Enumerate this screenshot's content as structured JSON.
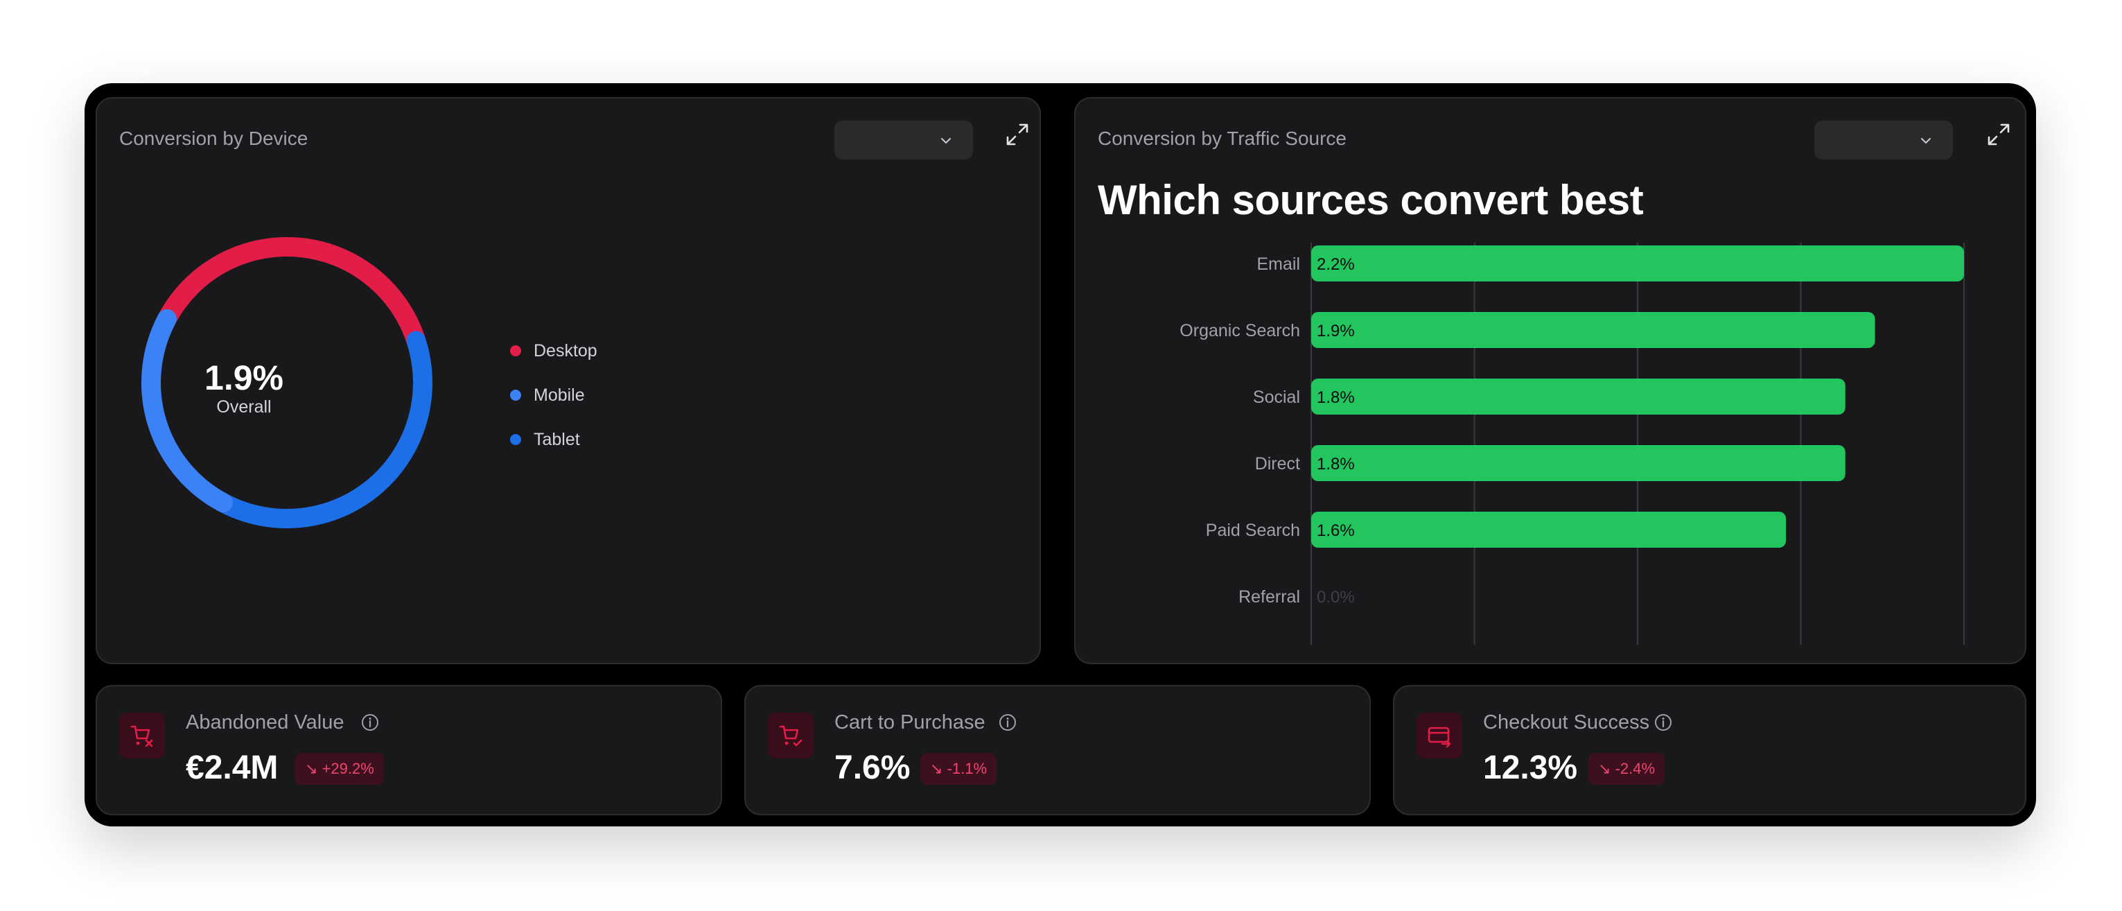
{
  "device_card": {
    "title": "Conversion by Device",
    "center_value": "1.9%",
    "center_label": "Overall",
    "legend": [
      {
        "label": "Desktop",
        "color": "#e11d48"
      },
      {
        "label": "Mobile",
        "color": "#3b82f6"
      },
      {
        "label": "Tablet",
        "color": "#1d6fe8"
      }
    ]
  },
  "traffic_card": {
    "title": "Conversion by Traffic Source",
    "headline": "Which sources convert best"
  },
  "chart_data": {
    "type": "bar",
    "orientation": "horizontal",
    "categories": [
      "Email",
      "Organic Search",
      "Social",
      "Direct",
      "Paid Search",
      "Referral"
    ],
    "values": [
      2.2,
      1.9,
      1.8,
      1.8,
      1.6,
      0.0
    ],
    "data_labels": [
      "2.2%",
      "1.9%",
      "1.8%",
      "1.8%",
      "1.6%",
      "0.0%"
    ],
    "bar_color": "#22c55e",
    "xlim": [
      0,
      2.2
    ],
    "grid": true
  },
  "kpis": [
    {
      "label": "Abandoned Value",
      "value": "€2.4M",
      "change": "+29.2%",
      "icon": "cart-x-icon"
    },
    {
      "label": "Cart to Purchase",
      "value": "7.6%",
      "change": "-1.1%",
      "icon": "cart-check-icon"
    },
    {
      "label": "Checkout Success",
      "value": "12.3%",
      "change": "-2.4%",
      "icon": "card-arrow-icon"
    }
  ],
  "colors": {
    "accent_red": "#e11d48",
    "badge_text": "#f0456e",
    "bar_green": "#22c55e"
  }
}
